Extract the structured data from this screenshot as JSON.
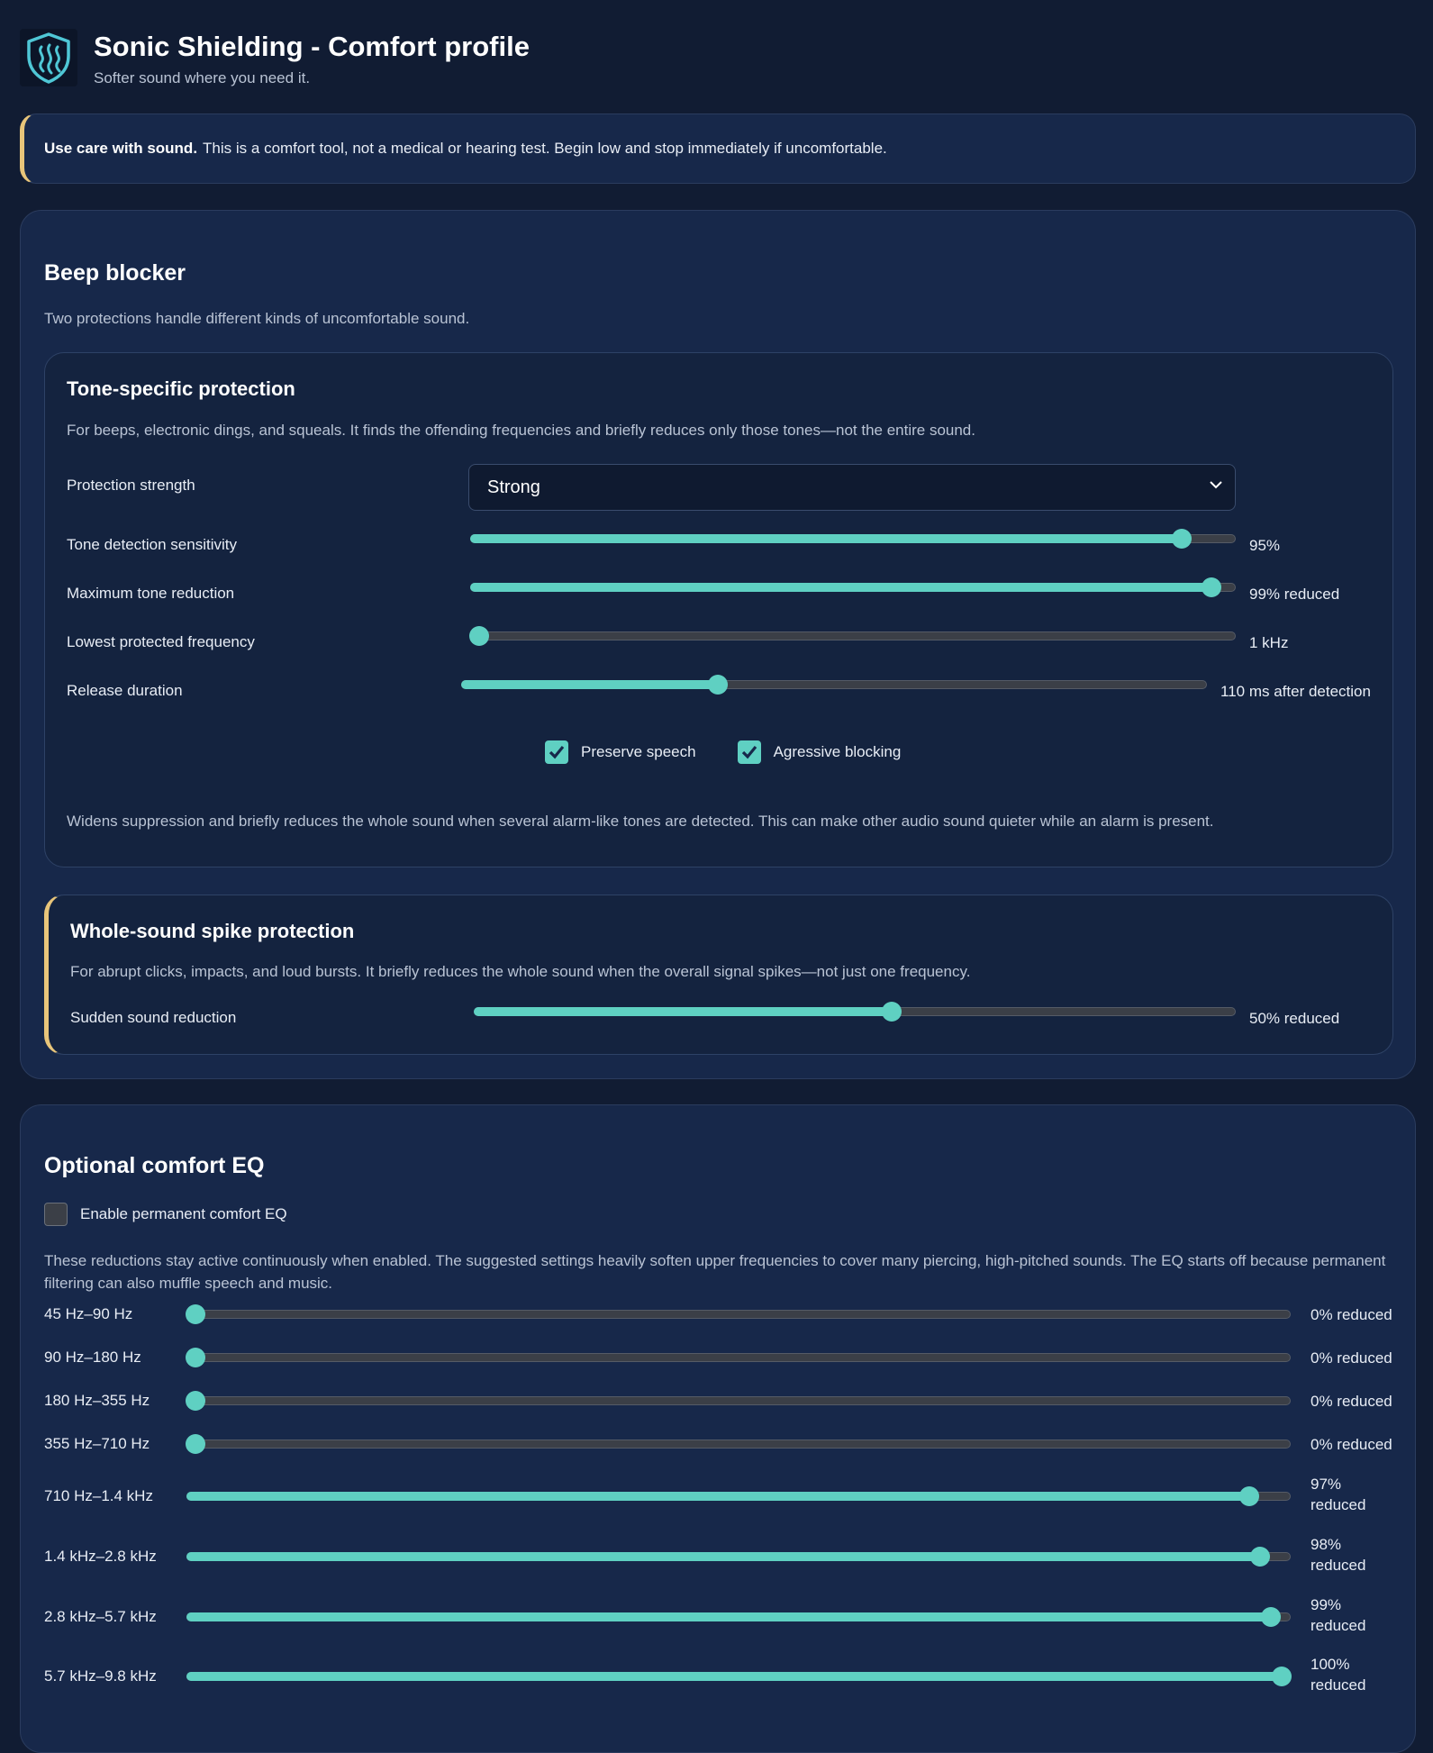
{
  "header": {
    "title": "Sonic Shielding - Comfort profile",
    "subtitle": "Softer sound where you need it."
  },
  "warning": {
    "bold": "Use care with sound.",
    "text": "This is a comfort tool, not a medical or hearing test. Begin low and stop immediately if uncomfortable."
  },
  "colors": {
    "accent": "#5fd0c2",
    "warning_border": "#e8c57a",
    "background": "#111c33",
    "card": "#17284a"
  },
  "beep_blocker": {
    "title": "Beep blocker",
    "description": "Two protections handle different kinds of uncomfortable sound.",
    "tone": {
      "title": "Tone-specific protection",
      "description": "For beeps, electronic dings, and squeals. It finds the offending frequencies and briefly reduces only those tones—not the entire sound.",
      "strength": {
        "label": "Protection strength",
        "value": "Strong"
      },
      "sliders": [
        {
          "label": "Tone detection sensitivity",
          "value": "95%",
          "fraction": 0.94
        },
        {
          "label": "Maximum tone reduction",
          "value": "99% reduced",
          "fraction": 0.98
        },
        {
          "label": "Lowest protected frequency",
          "value": "1 kHz",
          "fraction": 0.0
        },
        {
          "label": "Release duration",
          "value": "110 ms after detection",
          "fraction": 0.34
        }
      ],
      "checkboxes": [
        {
          "label": "Preserve speech",
          "checked": true
        },
        {
          "label": "Agressive blocking",
          "checked": true
        }
      ],
      "note": "Widens suppression and briefly reduces the whole sound when several alarm-like tones are detected. This can make other audio sound quieter while an alarm is present."
    },
    "spike": {
      "title": "Whole-sound spike protection",
      "description": "For abrupt clicks, impacts, and loud bursts. It briefly reduces the whole sound when the overall signal spikes—not just one frequency.",
      "slider": {
        "label": "Sudden sound reduction",
        "value": "50% reduced",
        "fraction": 0.55
      }
    }
  },
  "eq": {
    "title": "Optional comfort EQ",
    "enable_label": "Enable permanent comfort EQ",
    "enabled": false,
    "description": "These reductions stay active continuously when enabled. The suggested settings heavily soften upper frequencies to cover many piercing, high-pitched sounds. The EQ starts off because permanent filtering can also muffle speech and music.",
    "bands": [
      {
        "label": "45 Hz–90 Hz",
        "value": "0% reduced",
        "fraction": 0.0
      },
      {
        "label": "90 Hz–180 Hz",
        "value": "0% reduced",
        "fraction": 0.0
      },
      {
        "label": "180 Hz–355 Hz",
        "value": "0% reduced",
        "fraction": 0.0
      },
      {
        "label": "355 Hz–710 Hz",
        "value": "0% reduced",
        "fraction": 0.0
      },
      {
        "label": "710 Hz–1.4 kHz",
        "value": "97% reduced",
        "fraction": 0.97
      },
      {
        "label": "1.4 kHz–2.8 kHz",
        "value": "98% reduced",
        "fraction": 0.98
      },
      {
        "label": "2.8 kHz–5.7 kHz",
        "value": "99% reduced",
        "fraction": 0.99
      },
      {
        "label": "5.7 kHz–9.8 kHz",
        "value": "100% reduced",
        "fraction": 1.0
      }
    ]
  }
}
